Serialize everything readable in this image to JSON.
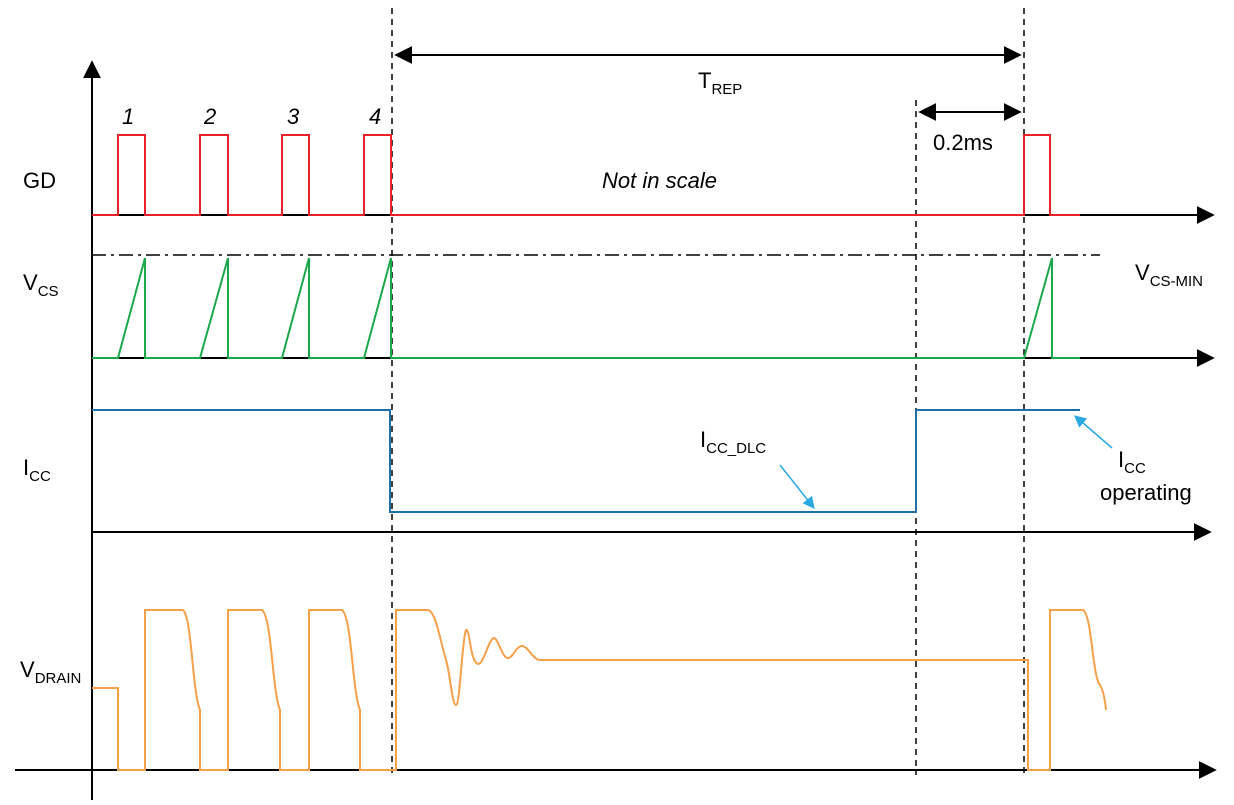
{
  "signals": {
    "gd": "GD",
    "vcs": {
      "main": "V",
      "sub": "CS"
    },
    "icc": {
      "main": "I",
      "sub": "CC"
    },
    "vdrain": {
      "main": "V",
      "sub": "DRAIN"
    }
  },
  "pulse_numbers": [
    "1",
    "2",
    "3",
    "4"
  ],
  "annotations": {
    "trep": {
      "main": "T",
      "sub": "REP"
    },
    "delay": "0.2ms",
    "not_in_scale": "Not in scale",
    "vcs_min": {
      "main": "V",
      "sub": "CS-MIN"
    },
    "icc_dlc": {
      "main": "I",
      "sub": "CC_DLC"
    },
    "icc_operating": {
      "main": "I",
      "sub": "CC",
      "line2": "operating"
    }
  },
  "colors": {
    "gd": "#e8202a",
    "vcs": "#1aa84a",
    "icc": "#1f6fa8",
    "vdrain": "#f5a04a",
    "arrow": "#29a9e0",
    "axis": "#000000"
  }
}
